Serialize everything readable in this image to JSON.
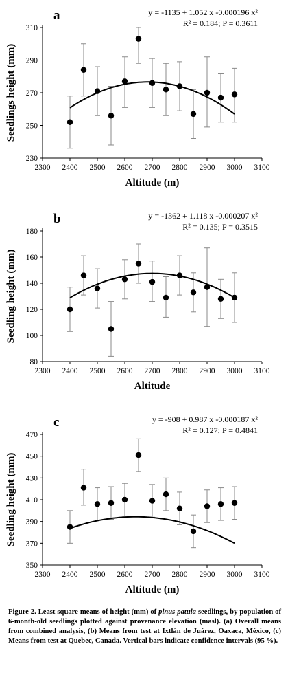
{
  "caption": {
    "fig_label": "Figure 2.",
    "before_species": "Least square means of height (mm) of",
    "species": "pinus patula",
    "after_species": "seedlings, by population of 6-month-old seedlings plotted against provenance elevation (masl). (a) Overall means from combined analysis, (b) Means from test at Ixtlán de Juárez, Oaxaca, México, (c) Means from test at Quebec, Canada. Vertical bars indicate confidence intervals (95 %)."
  },
  "chart_data": [
    {
      "type": "scatter",
      "panel_label": "a",
      "xlabel": "Altitude (m)",
      "ylabel": "Seedlings height (mm)",
      "xlim": [
        2300,
        3100
      ],
      "ylim": [
        230,
        310
      ],
      "xticks": [
        2300,
        2400,
        2500,
        2600,
        2700,
        2800,
        2900,
        3000,
        3100
      ],
      "yticks": [
        230,
        250,
        270,
        290,
        310
      ],
      "equation": "y = -1135 + 1.052 x -0.000196 x²",
      "stats": "R² = 0.184; P = 0.3611",
      "fit": {
        "a": -1135,
        "b": 1.052,
        "c": -0.000196
      },
      "points": [
        {
          "x": 2400,
          "y": 252,
          "lo": 236,
          "hi": 268
        },
        {
          "x": 2450,
          "y": 284,
          "lo": 268,
          "hi": 300
        },
        {
          "x": 2500,
          "y": 271,
          "lo": 256,
          "hi": 286
        },
        {
          "x": 2550,
          "y": 256,
          "lo": 238,
          "hi": 274
        },
        {
          "x": 2600,
          "y": 277,
          "lo": 261,
          "hi": 292
        },
        {
          "x": 2650,
          "y": 303,
          "lo": 288,
          "hi": 318
        },
        {
          "x": 2700,
          "y": 276,
          "lo": 261,
          "hi": 291
        },
        {
          "x": 2750,
          "y": 272,
          "lo": 256,
          "hi": 288
        },
        {
          "x": 2800,
          "y": 274,
          "lo": 259,
          "hi": 289
        },
        {
          "x": 2850,
          "y": 257,
          "lo": 242,
          "hi": 272
        },
        {
          "x": 2900,
          "y": 270,
          "lo": 249,
          "hi": 292
        },
        {
          "x": 2950,
          "y": 267,
          "lo": 252,
          "hi": 282
        },
        {
          "x": 3000,
          "y": 269,
          "lo": 252,
          "hi": 285
        }
      ]
    },
    {
      "type": "scatter",
      "panel_label": "b",
      "xlabel": "Altitude",
      "ylabel": "Seedling height (mm)",
      "xlim": [
        2300,
        3100
      ],
      "ylim": [
        80,
        180
      ],
      "xticks": [
        2300,
        2400,
        2500,
        2600,
        2700,
        2800,
        2900,
        3000,
        3100
      ],
      "yticks": [
        80,
        100,
        120,
        140,
        160,
        180
      ],
      "equation": "y = -1362 + 1.118 x -0.000207 x²",
      "stats": "R² = 0.135;  P = 0.3515",
      "fit": {
        "a": -1362,
        "b": 1.118,
        "c": -0.000207
      },
      "points": [
        {
          "x": 2400,
          "y": 120,
          "lo": 103,
          "hi": 137
        },
        {
          "x": 2450,
          "y": 146,
          "lo": 131,
          "hi": 161
        },
        {
          "x": 2500,
          "y": 136,
          "lo": 121,
          "hi": 151
        },
        {
          "x": 2550,
          "y": 105,
          "lo": 84,
          "hi": 126
        },
        {
          "x": 2600,
          "y": 143,
          "lo": 128,
          "hi": 158
        },
        {
          "x": 2650,
          "y": 155,
          "lo": 140,
          "hi": 170
        },
        {
          "x": 2700,
          "y": 141,
          "lo": 126,
          "hi": 157
        },
        {
          "x": 2750,
          "y": 129,
          "lo": 114,
          "hi": 145
        },
        {
          "x": 2800,
          "y": 146,
          "lo": 131,
          "hi": 161
        },
        {
          "x": 2850,
          "y": 133,
          "lo": 118,
          "hi": 148
        },
        {
          "x": 2900,
          "y": 137,
          "lo": 107,
          "hi": 167
        },
        {
          "x": 2950,
          "y": 128,
          "lo": 113,
          "hi": 143
        },
        {
          "x": 3000,
          "y": 129,
          "lo": 110,
          "hi": 148
        }
      ]
    },
    {
      "type": "scatter",
      "panel_label": "c",
      "xlabel": "Altitude (m)",
      "ylabel": "Seedling height (mm)",
      "xlim": [
        2300,
        3100
      ],
      "ylim": [
        350,
        470
      ],
      "xticks": [
        2300,
        2400,
        2500,
        2600,
        2700,
        2800,
        2900,
        3000,
        3100
      ],
      "yticks": [
        350,
        370,
        390,
        410,
        430,
        450,
        470
      ],
      "equation": "y = -908 + 0.987 x -0.000187 x²",
      "stats": "R² = 0.127; P = 0.4841",
      "fit": {
        "a": -908,
        "b": 0.987,
        "c": -0.000187
      },
      "points": [
        {
          "x": 2400,
          "y": 385,
          "lo": 370,
          "hi": 400
        },
        {
          "x": 2450,
          "y": 421,
          "lo": 405,
          "hi": 438
        },
        {
          "x": 2500,
          "y": 406,
          "lo": 391,
          "hi": 421
        },
        {
          "x": 2550,
          "y": 407,
          "lo": 392,
          "hi": 422
        },
        {
          "x": 2600,
          "y": 410,
          "lo": 395,
          "hi": 425
        },
        {
          "x": 2650,
          "y": 451,
          "lo": 436,
          "hi": 466
        },
        {
          "x": 2700,
          "y": 409,
          "lo": 394,
          "hi": 424
        },
        {
          "x": 2750,
          "y": 415,
          "lo": 400,
          "hi": 430
        },
        {
          "x": 2800,
          "y": 402,
          "lo": 387,
          "hi": 417
        },
        {
          "x": 2850,
          "y": 381,
          "lo": 366,
          "hi": 396
        },
        {
          "x": 2900,
          "y": 404,
          "lo": 389,
          "hi": 419
        },
        {
          "x": 2950,
          "y": 406,
          "lo": 391,
          "hi": 421
        },
        {
          "x": 3000,
          "y": 407,
          "lo": 392,
          "hi": 422
        }
      ]
    }
  ]
}
